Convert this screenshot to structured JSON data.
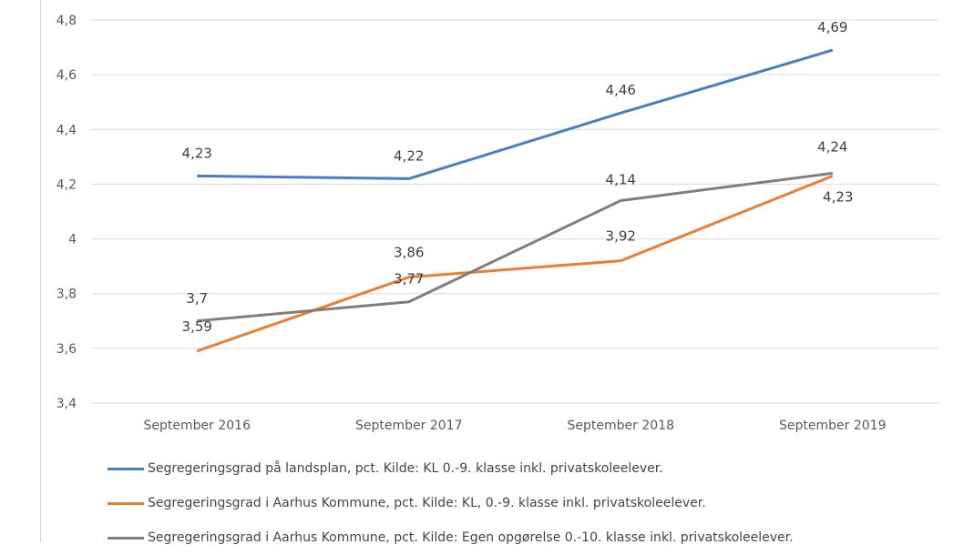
{
  "chart_data": {
    "type": "line",
    "categories": [
      "September 2016",
      "September 2017",
      "September 2018",
      "September 2019"
    ],
    "ylim": [
      3.4,
      4.8
    ],
    "yticks": [
      3.4,
      3.6,
      3.8,
      4,
      4.2,
      4.4,
      4.6,
      4.8
    ],
    "ytick_labels": [
      "3,4",
      "3,6",
      "3,8",
      "4",
      "4,2",
      "4,4",
      "4,6",
      "4,8"
    ],
    "grid": true,
    "legend_position": "bottom",
    "series": [
      {
        "name": "Segregeringsgrad på landsplan, pct. Kilde: KL 0.-9. klasse inkl. privatskoleelever.",
        "color": "#4a7ebf",
        "values": [
          4.23,
          4.22,
          4.46,
          4.69
        ],
        "labels": [
          "4,23",
          "4,22",
          "4,46",
          "4,69"
        ]
      },
      {
        "name": "Segregeringsgrad i Aarhus Kommune, pct. Kilde: KL, 0.-9. klasse inkl. privatskoleelever.",
        "color": "#ed7d31",
        "values": [
          3.59,
          3.86,
          3.92,
          4.23
        ],
        "labels": [
          "3,59",
          "3,86",
          "3,92",
          "4,23"
        ]
      },
      {
        "name": "Segregeringsgrad i Aarhus Kommune, pct. Kilde: Egen opgørelse 0.-10. klasse inkl. privatskoleelever.",
        "color": "#7f7f7f",
        "values": [
          3.7,
          3.77,
          4.14,
          4.24
        ],
        "labels": [
          "3,7",
          "3,77",
          "4,14",
          "4,24"
        ]
      }
    ]
  }
}
